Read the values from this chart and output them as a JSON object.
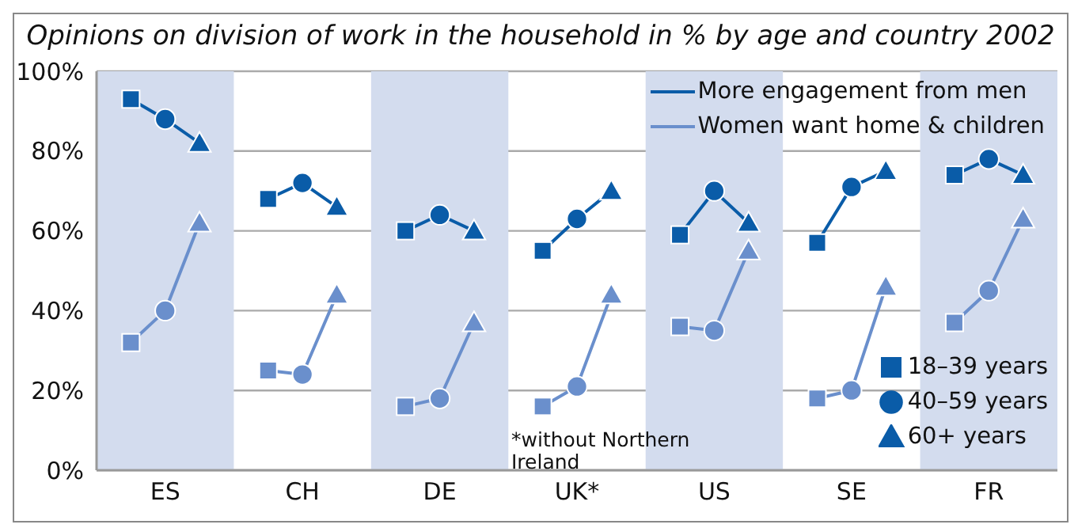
{
  "chart_data": {
    "type": "line",
    "title": "Opinions on division of work in the household in % by age and country 2002",
    "categories": [
      null,
      "ES",
      null,
      null,
      null,
      "CH",
      null,
      null,
      null,
      "DE",
      null,
      null,
      null,
      "UK*",
      null,
      null,
      null,
      "US",
      null,
      null,
      null,
      "SE",
      null,
      null,
      null,
      "FR",
      null
    ],
    "ylim": [
      0,
      100
    ],
    "yticks": [
      {
        "value": 0,
        "label": "0%"
      },
      {
        "value": 20,
        "label": "20%"
      },
      {
        "value": 40,
        "label": "40%"
      },
      {
        "value": 60,
        "label": "60%"
      },
      {
        "value": 80,
        "label": "80%"
      },
      {
        "value": 100,
        "label": "100%"
      }
    ],
    "grid": "y",
    "legend": "top right",
    "annotations": [
      "*without Northern Ireland"
    ],
    "series": [
      {
        "name": "More engagement from men",
        "color": "#0a5ca8",
        "values": [
          93,
          88,
          82,
          null,
          68,
          72,
          66,
          null,
          60,
          64,
          60,
          null,
          55,
          63,
          70,
          null,
          59,
          70,
          62,
          null,
          57,
          71,
          75,
          null,
          74,
          78,
          74
        ]
      },
      {
        "name": "Women want home & children",
        "color": "#6a8fcc",
        "values": [
          32,
          40,
          62,
          null,
          25,
          24,
          44,
          null,
          16,
          18,
          37,
          null,
          16,
          21,
          44,
          null,
          36,
          35,
          55,
          null,
          18,
          20,
          46,
          null,
          37,
          45,
          63
        ]
      },
      {
        "name": "18–39 years",
        "type": "scatter",
        "marker": "square",
        "color": "#0a5ca8",
        "values": [
          93,
          null,
          null,
          null,
          68,
          null,
          null,
          null,
          60,
          null,
          null,
          null,
          55,
          null,
          null,
          null,
          59,
          null,
          null,
          null,
          57,
          null,
          null,
          null,
          74,
          null,
          null
        ]
      },
      {
        "type": "scatter",
        "marker": "square",
        "color": "#6a8fcc",
        "values": [
          32,
          null,
          null,
          null,
          25,
          null,
          null,
          null,
          16,
          null,
          null,
          null,
          16,
          null,
          null,
          null,
          36,
          null,
          null,
          null,
          18,
          null,
          null,
          null,
          37,
          null,
          null
        ]
      },
      {
        "name": "40–59 years",
        "type": "scatter",
        "marker": "circle",
        "color": "#0a5ca8",
        "values": [
          null,
          88,
          null,
          null,
          null,
          72,
          null,
          null,
          null,
          64,
          null,
          null,
          null,
          63,
          null,
          null,
          null,
          70,
          null,
          null,
          null,
          71,
          null,
          null,
          null,
          78,
          null
        ]
      },
      {
        "type": "scatter",
        "marker": "circle",
        "color": "#6a8fcc",
        "values": [
          null,
          40,
          null,
          null,
          null,
          24,
          null,
          null,
          null,
          18,
          null,
          null,
          null,
          21,
          null,
          null,
          null,
          35,
          null,
          null,
          null,
          20,
          null,
          null,
          null,
          45,
          null
        ]
      },
      {
        "name": "60+ years",
        "type": "scatter",
        "marker": "triangle",
        "color": "#0a5ca8",
        "values": [
          null,
          null,
          82,
          null,
          null,
          null,
          66,
          null,
          null,
          null,
          60,
          null,
          null,
          null,
          70,
          null,
          null,
          null,
          62,
          null,
          null,
          null,
          75,
          null,
          null,
          null,
          74
        ]
      },
      {
        "type": "scatter",
        "marker": "triangle",
        "color": "#6a8fcc",
        "values": [
          null,
          null,
          62,
          null,
          null,
          null,
          44,
          null,
          null,
          null,
          37,
          null,
          null,
          null,
          44,
          null,
          null,
          null,
          55,
          null,
          null,
          null,
          46,
          null,
          null,
          null,
          63
        ]
      }
    ]
  }
}
